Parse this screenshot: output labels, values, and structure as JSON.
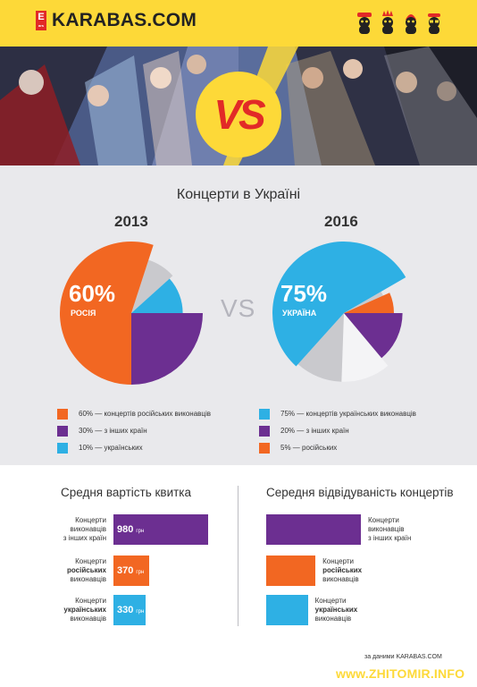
{
  "header": {
    "logo_badge": "E",
    "logo_badge_sub": "ars",
    "logo_text": "KARABAS.COM",
    "face_icons": [
      "face-1-icon",
      "face-2-icon",
      "face-3-icon",
      "face-4-icon"
    ]
  },
  "banner": {
    "vs_label": "VS"
  },
  "pies": {
    "title": "Концерти в Україні",
    "vs_label": "VS"
  },
  "attendance": {
    "title": "Середня відвідуваність концертів"
  },
  "source": "за даними KARABAS.COM",
  "watermark": "www.ZHITOMIR.INFO",
  "colors": {
    "orange": "#f26722",
    "purple": "#6c2f91",
    "blue": "#2eb0e4",
    "light_gray": "#c9c9cd",
    "white_gap": "#f4f4f6",
    "yellow": "#fdd938",
    "red": "#e22a27"
  },
  "chart_data": [
    {
      "type": "pie",
      "title": "2013",
      "callout_value": "60%",
      "callout_label": "РОСІЯ",
      "slices": [
        {
          "label": "60% — концертів російських виконавців",
          "value": 60,
          "color": "#f26722"
        },
        {
          "label": "30% — з інших країн",
          "value": 30,
          "color": "#6c2f91"
        },
        {
          "label": "10% — українських",
          "value": 10,
          "color": "#2eb0e4"
        }
      ]
    },
    {
      "type": "pie",
      "title": "2016",
      "callout_value": "75%",
      "callout_label": "УКРАЇНА",
      "slices": [
        {
          "label": "75% — концертів українських виконавців",
          "value": 75,
          "color": "#2eb0e4"
        },
        {
          "label": "20% — з інших країн",
          "value": 20,
          "color": "#6c2f91"
        },
        {
          "label": "5% — російських",
          "value": 5,
          "color": "#f26722"
        }
      ]
    },
    {
      "type": "bar",
      "title": "Средня вартість квитка",
      "unit": "грн",
      "categories": [
        {
          "l1": "Концерти",
          "l2": "виконавців",
          "l3": "з інших країн",
          "bold": ""
        },
        {
          "l1": "Концерти",
          "l2": "російських",
          "l3": "виконавців",
          "bold": "l2"
        },
        {
          "l1": "Концерти",
          "l2": "українських",
          "l3": "виконавців",
          "bold": "l2"
        }
      ],
      "values": [
        980,
        370,
        330
      ],
      "colors": [
        "#6c2f91",
        "#f26722",
        "#2eb0e4"
      ]
    },
    {
      "type": "bar",
      "title": "Середня відвідуваність концертів",
      "categories": [
        {
          "l1": "Концерти",
          "l2": "виконавців",
          "l3": "з інших країн",
          "bold": ""
        },
        {
          "l1": "Концерти",
          "l2": "російських",
          "l3": "виконавців",
          "bold": "l2"
        },
        {
          "l1": "Концерти",
          "l2": "українських",
          "l3": "виконавців",
          "bold": "l2"
        }
      ],
      "relative_values": [
        1.0,
        0.52,
        0.44
      ],
      "colors": [
        "#6c2f91",
        "#f26722",
        "#2eb0e4"
      ]
    }
  ]
}
